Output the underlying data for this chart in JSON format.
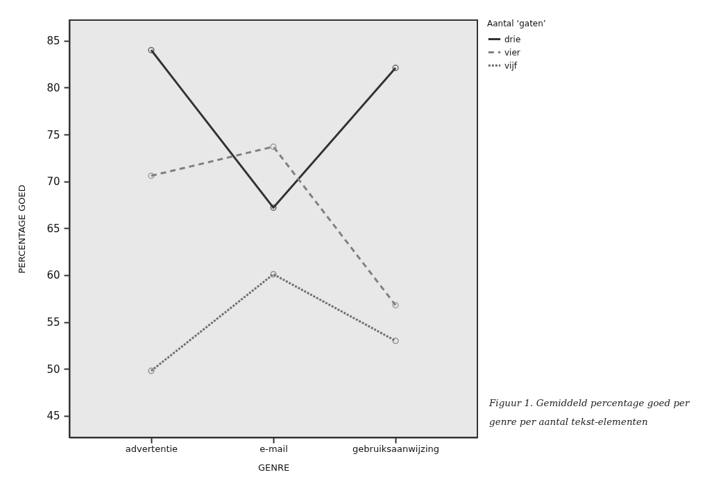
{
  "chart_data": {
    "type": "line",
    "xlabel": "GENRE",
    "ylabel": "PERCENTAGE GOED",
    "legend_title": "Aantal ‘gaten’",
    "categories": [
      "advertentie",
      "e-mail",
      "gebruiksaanwijzing"
    ],
    "series": [
      {
        "name": "drie",
        "color": "#333333",
        "line_style": "solid",
        "values": [
          84.0,
          67.2,
          82.1
        ]
      },
      {
        "name": "vier",
        "color": "#808080",
        "line_style": "dashed",
        "values": [
          70.6,
          73.7,
          56.8
        ]
      },
      {
        "name": "vijf",
        "color": "#6e6e6e",
        "line_style": "dotted",
        "values": [
          49.8,
          60.1,
          53.0
        ]
      }
    ],
    "ylim": [
      42.7,
      87.2
    ],
    "yticks": [
      45,
      50,
      55,
      60,
      65,
      70,
      75,
      80,
      85
    ],
    "grid": false,
    "legend": "top right",
    "marker": "circle",
    "annotations": [
      "Figuur 1. Gemiddeld percentage goed per genre per aantal tekst-elementen"
    ]
  }
}
